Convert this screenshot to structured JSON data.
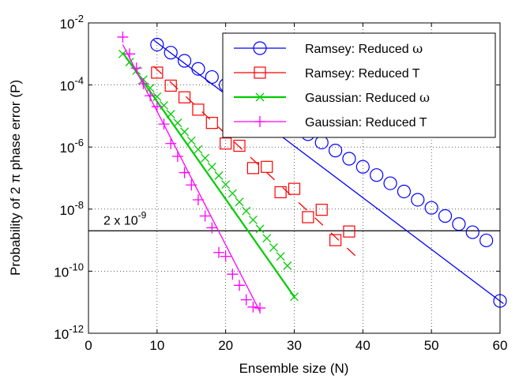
{
  "chart_data": {
    "type": "scatter",
    "title": "",
    "xlabel": "Ensemble size (N)",
    "ylabel": "Probability of 2 π phase error (P)",
    "xlim": [
      0,
      60
    ],
    "ylim": [
      1e-12,
      0.01
    ],
    "yscale": "log",
    "grid": true,
    "legend_position": "top-right",
    "xticks": [
      0,
      10,
      20,
      30,
      40,
      50,
      60
    ],
    "yticks": [
      {
        "value": 0.01,
        "mantissa": "10",
        "exponent": "-2"
      },
      {
        "value": 0.0001,
        "mantissa": "10",
        "exponent": "-4"
      },
      {
        "value": 1e-06,
        "mantissa": "10",
        "exponent": "-6"
      },
      {
        "value": 1e-08,
        "mantissa": "10",
        "exponent": "-8"
      },
      {
        "value": 1e-10,
        "mantissa": "10",
        "exponent": "-10"
      },
      {
        "value": 1e-12,
        "mantissa": "10",
        "exponent": "-12"
      }
    ],
    "threshold": {
      "value": 2e-09,
      "label_prefix": "2 x 10",
      "label_exponent": "-9"
    },
    "series": [
      {
        "name_text": "Ramsey: Reduced ",
        "name_symbol": "ω",
        "color": "#0000ff",
        "marker": "circle",
        "x": [
          10,
          12,
          14,
          16,
          18,
          20,
          22,
          24,
          26,
          28,
          30,
          32,
          34,
          36,
          38,
          40,
          42,
          44,
          46,
          48,
          50,
          52,
          54,
          56,
          58,
          60
        ],
        "y": [
          0.002,
          0.0011,
          0.0006,
          0.00033,
          0.00018,
          0.0001,
          5.4e-05,
          2.9e-05,
          1.6e-05,
          8.7e-06,
          4.7e-06,
          2.6e-06,
          1.4e-06,
          7.7e-07,
          4.2e-07,
          2.3e-07,
          1.25e-07,
          6.8e-08,
          3.7e-08,
          2e-08,
          1.1e-08,
          6e-09,
          3.3e-09,
          1.8e-09,
          9.8e-10,
          1.1e-11
        ],
        "fit": {
          "x": [
            9.5,
            60.5
          ],
          "y": [
            0.0028,
            9e-12
          ]
        }
      },
      {
        "name_text": "Ramsey: Reduced T",
        "name_symbol": "",
        "color": "#ff0000",
        "marker": "square",
        "x": [
          10,
          12,
          14,
          16,
          18,
          20,
          22,
          24,
          26,
          28,
          30,
          32,
          34,
          36,
          38
        ],
        "y": [
          0.00025,
          9.5e-05,
          4e-05,
          1.6e-05,
          6e-06,
          1.3e-06,
          1.1e-06,
          2.1e-07,
          2.3e-07,
          3.5e-08,
          4.5e-08,
          5.5e-09,
          9.5e-09,
          1e-09,
          1.9e-09
        ],
        "fit": {
          "x": [
            9.5,
            39
          ],
          "y": [
            0.0004,
            3e-10
          ]
        }
      },
      {
        "name_text": "Gaussian: Reduced ",
        "name_symbol": "ω",
        "color": "#00cc00",
        "marker": "x",
        "x": [
          5,
          6,
          7,
          8,
          9,
          10,
          11,
          12,
          13,
          14,
          15,
          16,
          17,
          18,
          19,
          20,
          21,
          22,
          23,
          24,
          25,
          26,
          27,
          28,
          29,
          30
        ],
        "y": [
          0.001,
          0.00055,
          0.00029,
          0.00015,
          8e-05,
          4.2e-05,
          2.2e-05,
          1.15e-05,
          6e-06,
          3.1e-06,
          1.6e-06,
          8.4e-07,
          4.4e-07,
          2.3e-07,
          1.2e-07,
          6.2e-08,
          3.2e-08,
          1.7e-08,
          8.7e-09,
          4.5e-09,
          2.3e-09,
          1.15e-09,
          5.8e-10,
          3e-10,
          1.5e-10,
          1.5e-11
        ],
        "fit": {
          "x": [
            5,
            30
          ],
          "y": [
            0.0011,
            1.5e-11
          ]
        }
      },
      {
        "name_text": "Gaussian: Reduced T",
        "name_symbol": "",
        "color": "#ff00ff",
        "marker": "plus",
        "x": [
          5,
          6,
          7,
          8,
          9,
          10,
          11,
          12,
          13,
          14,
          15,
          16,
          17,
          18,
          19,
          20,
          21,
          22,
          23,
          24,
          25
        ],
        "y": [
          0.0035,
          0.001,
          0.00035,
          0.00011,
          4.5e-05,
          2e-05,
          5.5e-06,
          1.3e-06,
          5e-07,
          1.5e-07,
          6e-08,
          2e-08,
          6e-09,
          2.5e-09,
          4e-10,
          3e-10,
          8e-11,
          3.5e-11,
          1.2e-11,
          7e-12,
          6.5e-12
        ],
        "fit": {
          "x": [
            5,
            25
          ],
          "y": [
            0.002,
            5e-12
          ]
        }
      }
    ]
  }
}
